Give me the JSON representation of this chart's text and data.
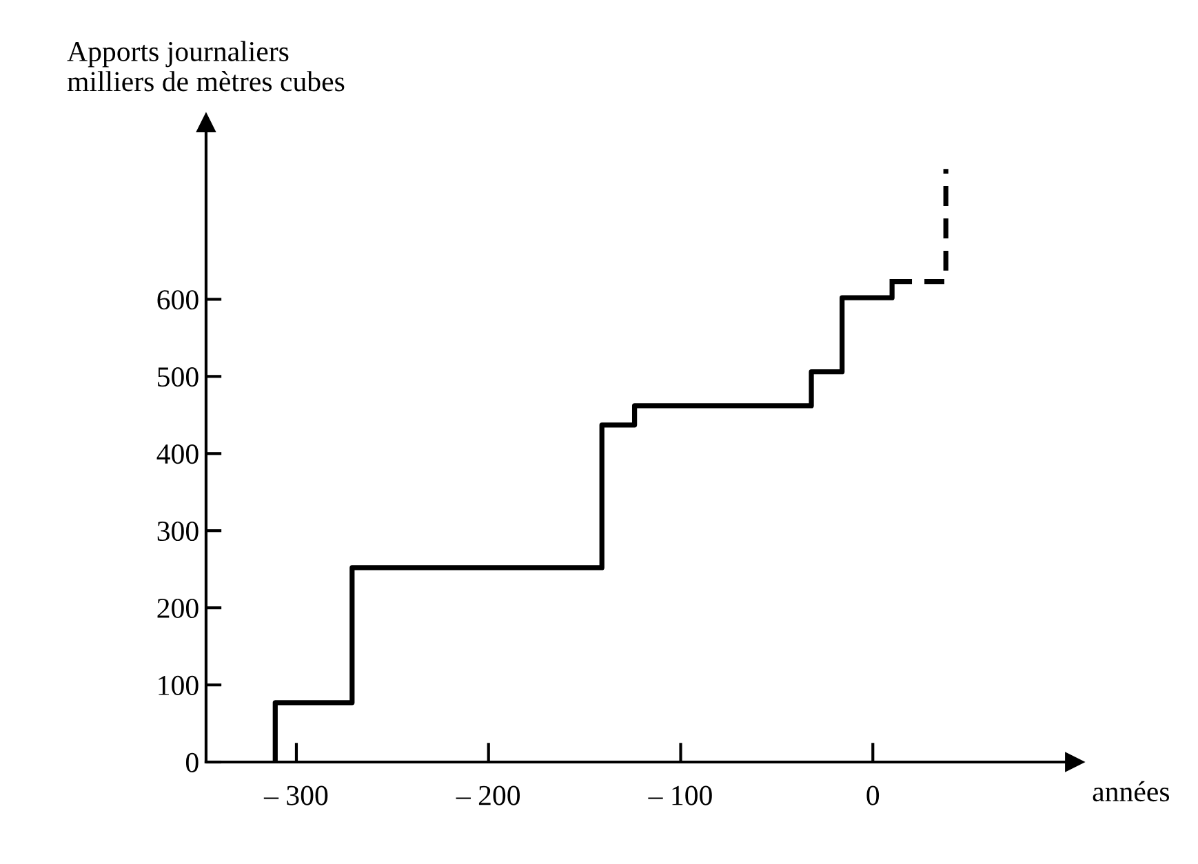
{
  "chart_data": {
    "type": "step",
    "ylabel": "Apports journaliers\nmilliers de mètres cubes",
    "xlabel": "années",
    "series": [
      {
        "color": "#000000",
        "line_style": "solid",
        "x": [
          -311,
          -311,
          -271,
          -141,
          -124,
          -32,
          -16,
          10
        ],
        "values": [
          0,
          77,
          252,
          437,
          462,
          506,
          602,
          623
        ]
      },
      {
        "color": "#000000",
        "line_style": "dashed",
        "x": [
          10,
          38,
          38
        ],
        "values": [
          623,
          623,
          769
        ]
      }
    ],
    "xlim": [
      -347,
      105
    ],
    "ylim": [
      0,
      829
    ],
    "xticks": [
      {
        "value": -300,
        "label": "– 300"
      },
      {
        "value": -200,
        "label": "– 200"
      },
      {
        "value": -100,
        "label": "– 100"
      },
      0
    ],
    "yticks": [
      0,
      100,
      200,
      300,
      400,
      500,
      600
    ],
    "grid": false,
    "legend": false
  }
}
